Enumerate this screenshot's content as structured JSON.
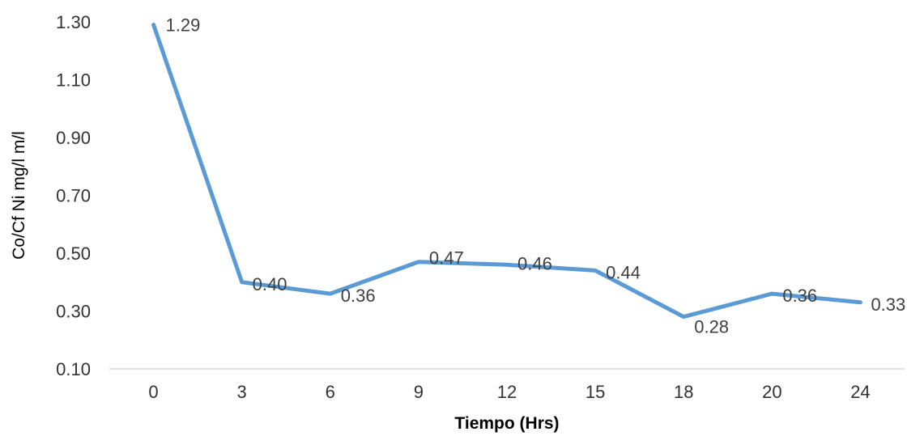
{
  "chart_data": {
    "type": "line",
    "title": "",
    "xlabel": "Tiempo  (Hrs)",
    "ylabel": "Co/Cf  Ni mg/l m/l",
    "categories": [
      "0",
      "3",
      "6",
      "9",
      "12",
      "15",
      "18",
      "20",
      "24"
    ],
    "series": [
      {
        "values": [
          1.29,
          0.4,
          0.36,
          0.47,
          0.46,
          0.44,
          0.28,
          0.36,
          0.33
        ],
        "labels": [
          "1.29",
          "0.40",
          "0.36",
          "0.47",
          "0.46",
          "0.44",
          "0.28",
          "0.36",
          "0.33"
        ],
        "color": "#5B9BD5"
      }
    ],
    "yticks": [
      "0.10",
      "0.30",
      "0.50",
      "0.70",
      "0.90",
      "1.10",
      "1.30"
    ],
    "ylim": [
      0.1,
      1.3
    ],
    "grid": false,
    "legend": "none",
    "colors": {
      "axis": "#d9d9d9",
      "line": "#5B9BD5",
      "text": "#404040"
    }
  }
}
